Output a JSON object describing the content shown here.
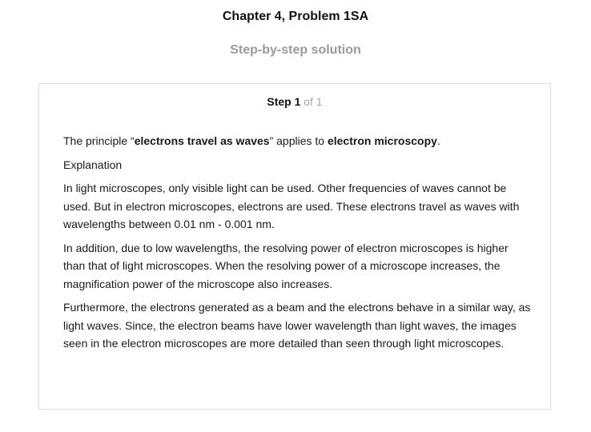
{
  "header": {
    "title": "Chapter 4, Problem 1SA",
    "subtitle": "Step-by-step solution"
  },
  "step": {
    "label": "Step 1",
    "of_text": "of 1"
  },
  "content": {
    "intro": {
      "prefix": "The principle “",
      "term1": "electrons travel as waves",
      "middle": "” applies to ",
      "term2": "electron microscopy",
      "suffix": "."
    },
    "explanation_heading": "Explanation",
    "paragraphs": [
      "In light microscopes, only visible light can be used. Other frequencies of waves cannot be used. But in electron microscopes, electrons are used. These electrons travel as waves with wavelengths between 0.01 nm - 0.001 nm.",
      "In addition, due to low wavelengths, the resolving power of electron microscopes is higher than that of light microscopes. When the resolving power of a microscope increases, the magnification power of the microscope also increases.",
      "Furthermore, the electrons generated as a beam and the electrons behave in a similar way, as light waves. Since, the electron beams have lower wavelength than light waves, the images seen in the electron microscopes are more detailed than seen through light microscopes."
    ]
  },
  "colors": {
    "subtitle": "#9a9a9a",
    "step_of": "#a8a8a8",
    "card_border": "#dcdcdc"
  }
}
